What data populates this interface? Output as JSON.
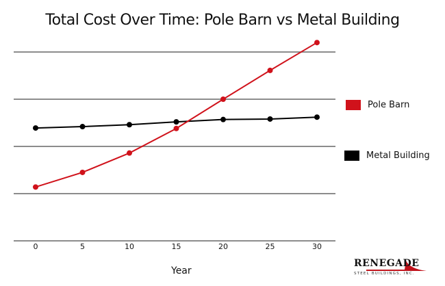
{
  "title": "Total Cost Over Time:  Pole Barn vs Metal Building",
  "x_axis_label": "Year",
  "legend": [
    {
      "label": "Pole Barn",
      "color": "#d0121b"
    },
    {
      "label": "Metal Building",
      "color": "#000000"
    }
  ],
  "logo": {
    "name": "RENEGADE",
    "tagline": "STEEL BUILDINGS, INC."
  },
  "chart_data": {
    "type": "line",
    "title": "Total Cost Over Time:  Pole Barn vs Metal Building",
    "xlabel": "Year",
    "ylabel": "",
    "x": [
      0,
      5,
      10,
      15,
      20,
      25,
      30
    ],
    "series": [
      {
        "name": "Pole Barn",
        "color": "#d0121b",
        "values": [
          1.14,
          1.45,
          1.86,
          2.38,
          3.0,
          3.61,
          4.2
        ]
      },
      {
        "name": "Metal Building",
        "color": "#000000",
        "values": [
          2.39,
          2.42,
          2.46,
          2.52,
          2.57,
          2.58,
          2.62
        ]
      }
    ],
    "ylim": [
      0,
      4
    ],
    "y_ticks_labeled": false,
    "grid": "horizontal",
    "gridlines_y": [
      0,
      1,
      2,
      3,
      4
    ],
    "legend_position": "right",
    "note": "Y values in gridline units (no y-axis labels shown)"
  }
}
